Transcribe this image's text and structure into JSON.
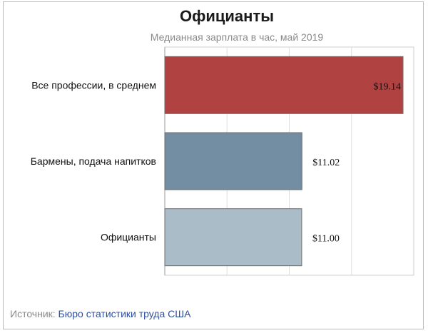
{
  "chart_data": {
    "type": "bar",
    "orientation": "horizontal",
    "title": "Официанты",
    "subtitle": "Медианная зарплата в час, май 2019",
    "categories": [
      "Все профессии, в среднем",
      "Бармены, подача напитков",
      "Официанты"
    ],
    "values": [
      19.14,
      11.02,
      11.0
    ],
    "value_labels": [
      "$19.14",
      "$11.02",
      "$11.00"
    ],
    "xlim": [
      0,
      20
    ],
    "grid": true,
    "colors": [
      "#b04242",
      "#738da3",
      "#a9bcc8"
    ]
  },
  "footer": {
    "label": "Источник:",
    "source": "Бюро статистики труда США"
  }
}
